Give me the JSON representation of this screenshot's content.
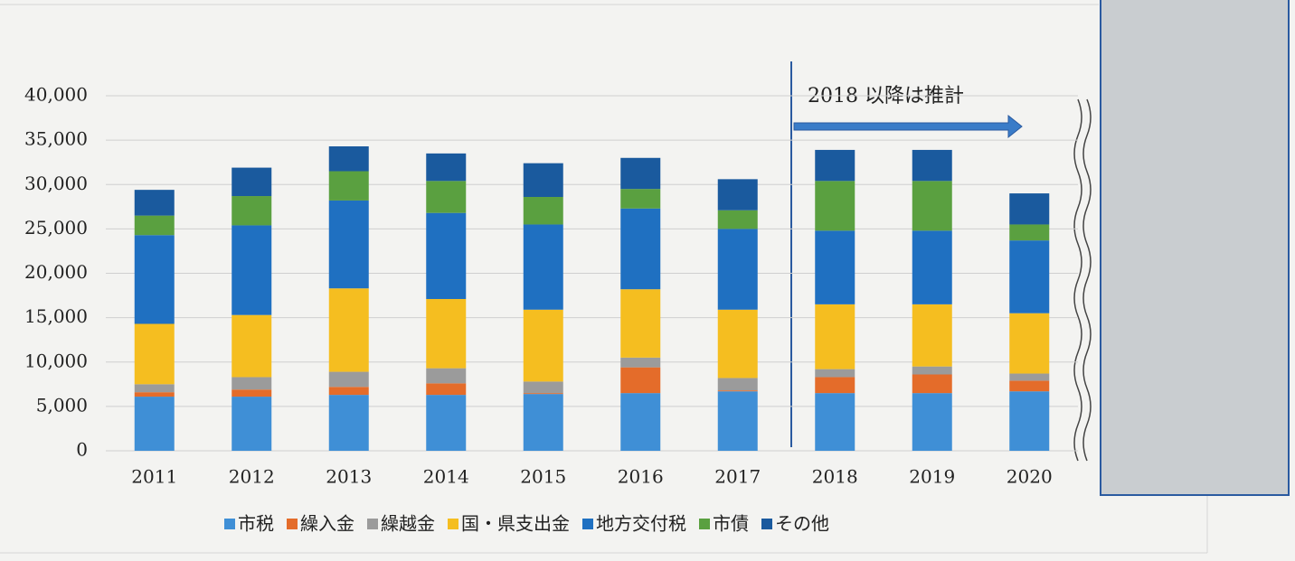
{
  "chart_data": {
    "type": "bar",
    "stacked": true,
    "annotation": "2018 以降は推計",
    "categories": [
      "2011",
      "2012",
      "2013",
      "2014",
      "2015",
      "2016",
      "2017",
      "2018",
      "2019",
      "2020"
    ],
    "series": [
      {
        "name": "市税",
        "color": "#3f8fd6",
        "values": [
          6100,
          6100,
          6300,
          6300,
          6400,
          6500,
          6700,
          6500,
          6500,
          6700
        ]
      },
      {
        "name": "繰入金",
        "color": "#e46c2a",
        "values": [
          500,
          800,
          900,
          1300,
          100,
          2900,
          100,
          1800,
          2100,
          1200
        ]
      },
      {
        "name": "繰越金",
        "color": "#9b9b9b",
        "values": [
          900,
          1400,
          1700,
          1700,
          1300,
          1100,
          1400,
          900,
          900,
          800
        ]
      },
      {
        "name": "国・県支出金",
        "color": "#f5be20",
        "values": [
          6800,
          7000,
          9400,
          7800,
          8100,
          7700,
          7700,
          7300,
          7000,
          6800
        ]
      },
      {
        "name": "地方交付税",
        "color": "#1f70c1",
        "values": [
          10000,
          10100,
          9900,
          9700,
          9600,
          9100,
          9100,
          8300,
          8300,
          8200
        ]
      },
      {
        "name": "市債",
        "color": "#5aa040",
        "values": [
          2200,
          3300,
          3300,
          3600,
          3100,
          2200,
          2100,
          5600,
          5600,
          1800
        ]
      },
      {
        "name": "その他",
        "color": "#1a5a9e",
        "values": [
          2900,
          3200,
          2800,
          3100,
          3800,
          3500,
          3500,
          3500,
          3500,
          3500
        ]
      }
    ],
    "ylim": [
      0,
      40000
    ],
    "yticks": [
      0,
      {
        "value": 5000,
        "label": "5,000"
      },
      {
        "value": 10000,
        "label": "10,000"
      },
      {
        "value": 15000,
        "label": "15,000"
      },
      {
        "value": 20000,
        "label": "20,000"
      },
      {
        "value": 25000,
        "label": "25,000"
      },
      {
        "value": 30000,
        "label": "30,000"
      },
      {
        "value": 35000,
        "label": "35,000"
      },
      {
        "value": 40000,
        "label": "40,000"
      }
    ],
    "grid": true,
    "legend": "bottom"
  }
}
